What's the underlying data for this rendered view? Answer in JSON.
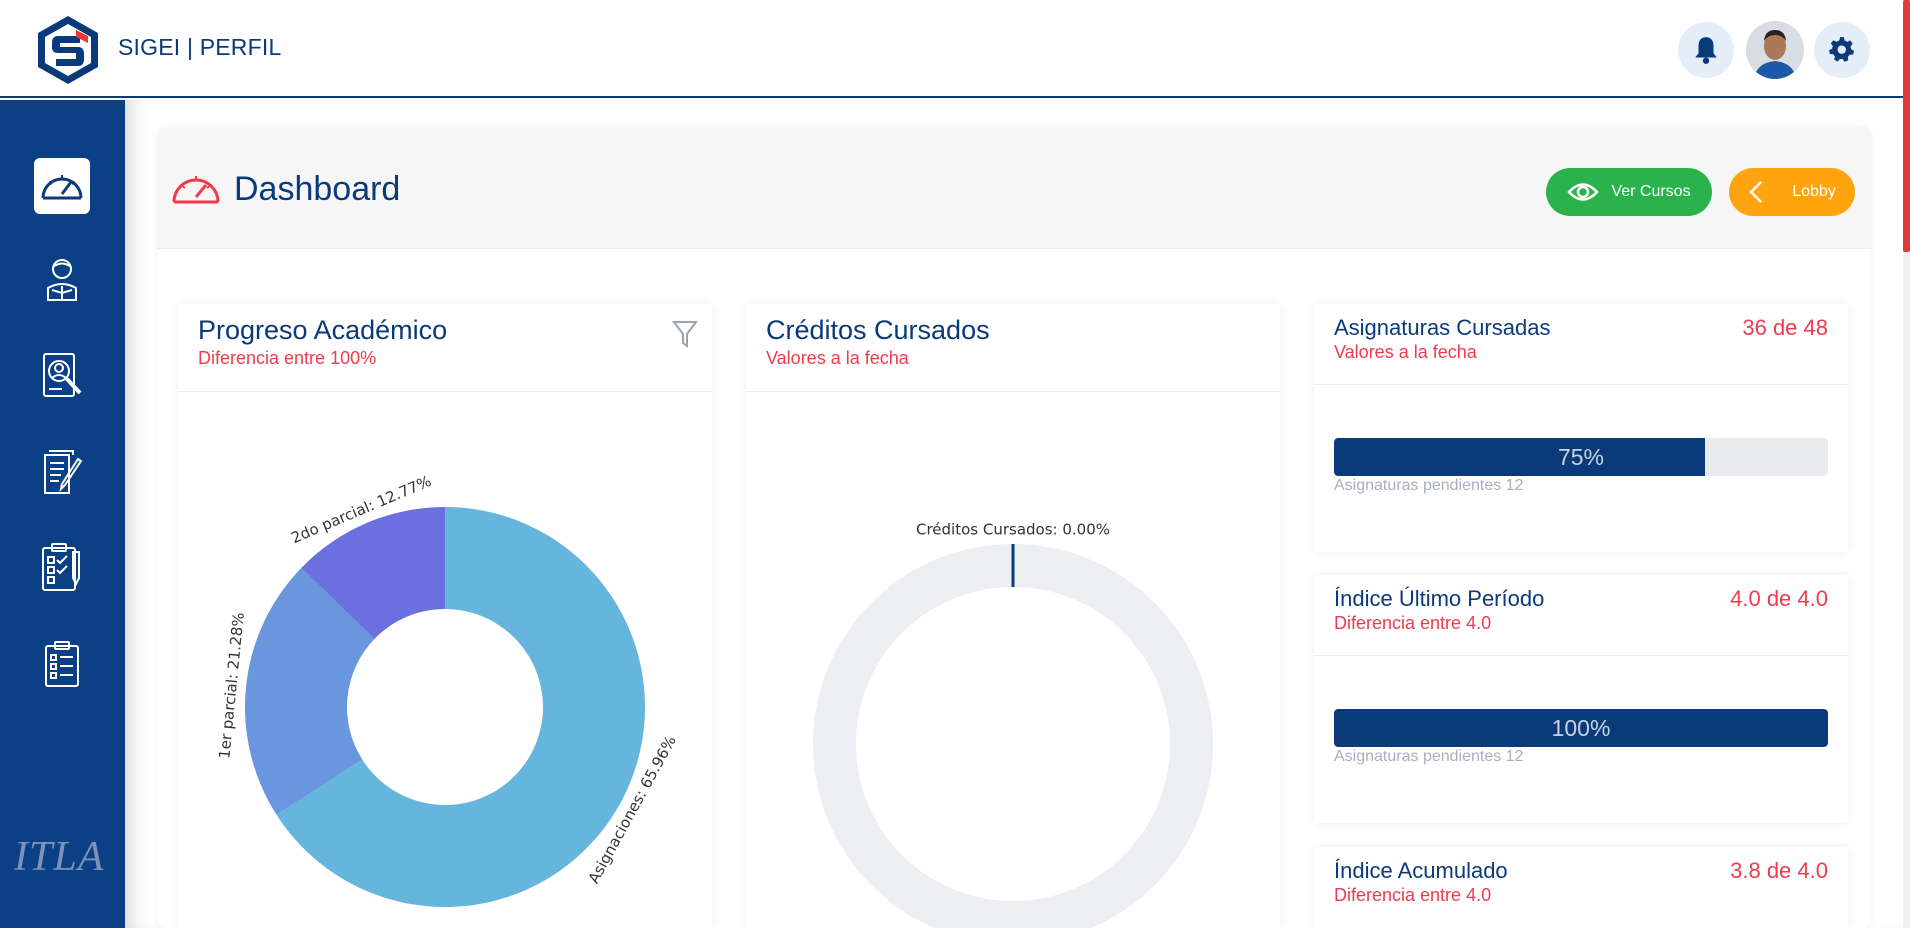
{
  "app": {
    "title": "SIGEI | PERFIL"
  },
  "colors": {
    "primary": "#0b3a7a",
    "accent_red": "#ef3b4e",
    "green": "#2bb24c",
    "orange": "#ffa40f",
    "sidebar": "#0b3f86"
  },
  "header": {
    "icons": [
      "bell-icon",
      "avatar",
      "gear-icon"
    ]
  },
  "sidebar": {
    "items": [
      {
        "icon": "speedometer-icon",
        "active": true
      },
      {
        "icon": "student-reading-icon",
        "active": false
      },
      {
        "icon": "profile-search-icon",
        "active": false
      },
      {
        "icon": "document-edit-icon",
        "active": false
      },
      {
        "icon": "checklist-clipboard-icon",
        "active": false
      },
      {
        "icon": "clipboard-list-icon",
        "active": false
      }
    ],
    "footer_logo": "ITLA"
  },
  "page": {
    "title": "Dashboard",
    "buttons": {
      "ver_cursos": "Ver Cursos",
      "lobby": "Lobby"
    }
  },
  "cards": {
    "progreso": {
      "title": "Progreso Académico",
      "subtitle": "Diferencia entre 100%"
    },
    "creditos": {
      "title": "Créditos Cursados",
      "subtitle": "Valores a la fecha"
    },
    "asignaturas": {
      "title": "Asignaturas Cursadas",
      "subtitle": "Valores a la fecha",
      "value": "36 de 48",
      "progress": 75,
      "progress_label": "75%",
      "note": "Asignaturas pendientes 12"
    },
    "indice_ultimo": {
      "title": "Índice Último Período",
      "subtitle": "Diferencia entre 4.0",
      "value": "4.0 de 4.0",
      "progress": 100,
      "progress_label": "100%",
      "note": "Asignaturas pendientes 12"
    },
    "indice_acumulado": {
      "title": "Índice Acumulado",
      "subtitle": "Diferencia entre 4.0",
      "value": "3.8 de 4.0"
    }
  },
  "chart_data": [
    {
      "type": "pie",
      "variant": "donut",
      "title": "",
      "categories": [
        "Asignaciones",
        "1er parcial",
        "2do parcial"
      ],
      "values": [
        65.96,
        21.28,
        12.77
      ],
      "labels": [
        "Asignaciones: 65.96%",
        "1er parcial: 21.28%",
        "2do parcial: 12.77%"
      ],
      "colors": [
        "#66b5dc",
        "#6a96de",
        "#6b6fe0"
      ]
    },
    {
      "type": "pie",
      "variant": "donut",
      "title": "",
      "categories": [
        "Créditos Cursados"
      ],
      "values": [
        0.0
      ],
      "labels": [
        "Créditos Cursados: 0.00%"
      ],
      "colors": [
        "#0b3a7a"
      ],
      "track_color": "#eceef2"
    }
  ]
}
